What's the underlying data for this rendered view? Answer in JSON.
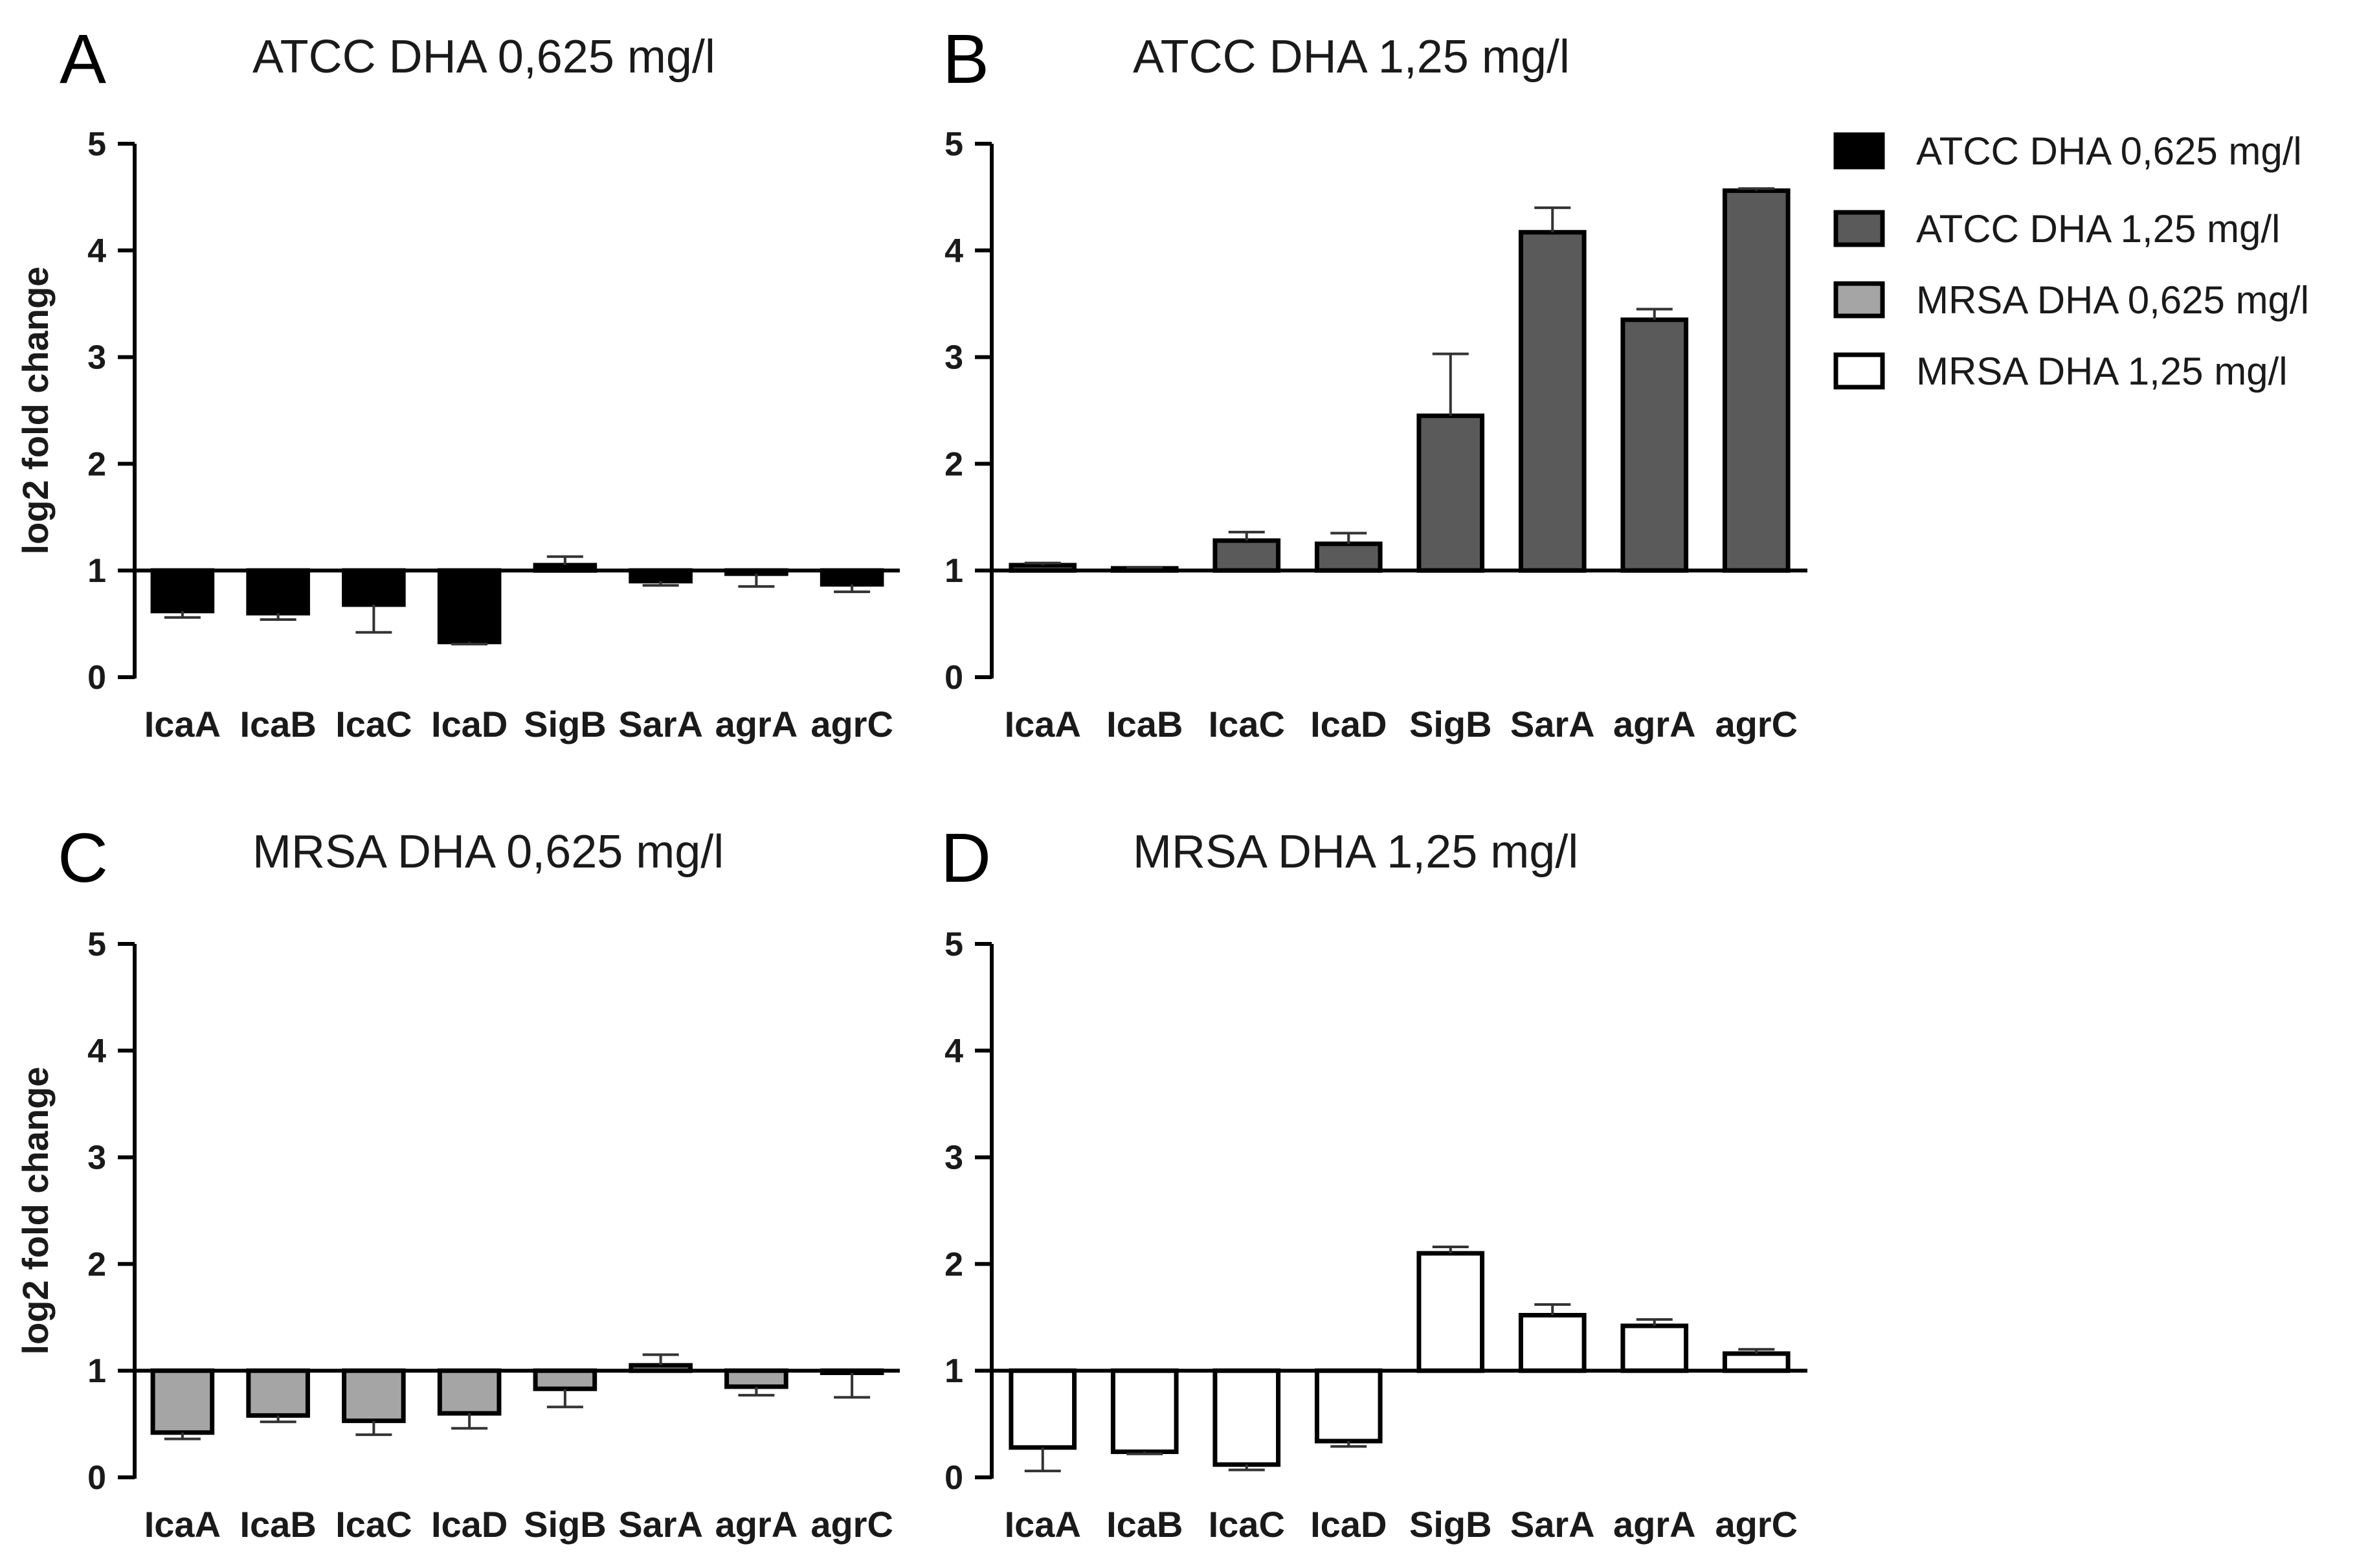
{
  "figure": {
    "legend_items": [
      {
        "label": "ATCC DHA 0,625 mg/l",
        "color": "#000000"
      },
      {
        "label": "ATCC DHA 1,25 mg/l",
        "color": "#5a5a5a"
      },
      {
        "label": "MRSA DHA 0,625 mg/l",
        "color": "#a5a5a5"
      },
      {
        "label": "MRSA DHA 1,25 mg/l",
        "color": "#ffffff"
      }
    ]
  },
  "chart_data": [
    {
      "type": "bar",
      "panel": "A",
      "title": "ATCC DHA 0,625 mg/l",
      "xlabel": "",
      "ylabel": "log2 fold change",
      "ylim": [
        0,
        5
      ],
      "yticks": [
        "0",
        "1",
        "2",
        "3",
        "4",
        "5"
      ],
      "baseline": 1,
      "color": "#000000",
      "categories": [
        "IcaA",
        "IcaB",
        "IcaC",
        "IcaD",
        "SigB",
        "SarA",
        "agrA",
        "agrC"
      ],
      "values": [
        0.62,
        0.6,
        0.68,
        0.33,
        1.05,
        0.9,
        0.97,
        0.87
      ],
      "errors": [
        0.06,
        0.06,
        0.26,
        0.02,
        0.08,
        0.04,
        0.12,
        0.07
      ]
    },
    {
      "type": "bar",
      "panel": "B",
      "title": "ATCC DHA 1,25 mg/l",
      "xlabel": "",
      "ylabel": "",
      "ylim": [
        0,
        5
      ],
      "yticks": [
        "0",
        "1",
        "2",
        "3",
        "4",
        "5"
      ],
      "baseline": 1,
      "color": "#5a5a5a",
      "categories": [
        "IcaA",
        "IcaB",
        "IcaC",
        "IcaD",
        "SigB",
        "SarA",
        "agrA",
        "agrC"
      ],
      "values": [
        1.05,
        1.02,
        1.28,
        1.25,
        2.45,
        4.17,
        3.35,
        4.56
      ],
      "errors": [
        0.02,
        0.01,
        0.08,
        0.1,
        0.58,
        0.23,
        0.1,
        0.02
      ]
    },
    {
      "type": "bar",
      "panel": "C",
      "title": "MRSA DHA 0,625 mg/l",
      "xlabel": "",
      "ylabel": "log2 fold change",
      "ylim": [
        0,
        5
      ],
      "yticks": [
        "0",
        "1",
        "2",
        "3",
        "4",
        "5"
      ],
      "baseline": 1,
      "color": "#a5a5a5",
      "categories": [
        "IcaA",
        "IcaB",
        "IcaC",
        "IcaD",
        "SigB",
        "SarA",
        "agrA",
        "agrC"
      ],
      "values": [
        0.42,
        0.58,
        0.53,
        0.6,
        0.83,
        1.05,
        0.85,
        0.98
      ],
      "errors": [
        0.06,
        0.06,
        0.13,
        0.14,
        0.17,
        0.1,
        0.08,
        0.23
      ]
    },
    {
      "type": "bar",
      "panel": "D",
      "title": "MRSA DHA 1,25 mg/l",
      "xlabel": "",
      "ylabel": "",
      "ylim": [
        0,
        5
      ],
      "yticks": [
        "0",
        "1",
        "2",
        "3",
        "4",
        "5"
      ],
      "baseline": 1,
      "color": "#ffffff",
      "categories": [
        "IcaA",
        "IcaB",
        "IcaC",
        "IcaD",
        "SigB",
        "SarA",
        "agrA",
        "agrC"
      ],
      "values": [
        0.28,
        0.24,
        0.12,
        0.34,
        2.1,
        1.52,
        1.42,
        1.16
      ],
      "errors": [
        0.22,
        0.02,
        0.05,
        0.05,
        0.06,
        0.1,
        0.06,
        0.04
      ]
    }
  ]
}
